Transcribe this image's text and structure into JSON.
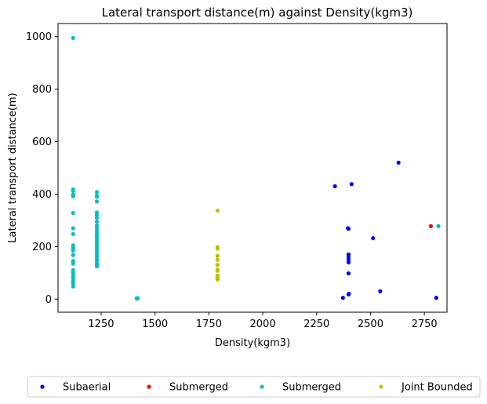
{
  "chart_data": {
    "type": "scatter",
    "title": "Lateral transport distance(m) against Density(kgm3)",
    "xlabel": "Density(kgm3)",
    "ylabel": "Lateral transport distance(m)",
    "xlim": [
      1050,
      2855
    ],
    "ylim": [
      -50,
      1050
    ],
    "xticks": [
      1250,
      1500,
      1750,
      2000,
      2250,
      2500,
      2750
    ],
    "yticks": [
      0,
      200,
      400,
      600,
      800,
      1000
    ],
    "legend_position": "bottom-center",
    "grid": false,
    "series": [
      {
        "name": "Subaerial",
        "color": "#0000ff",
        "points": [
          [
            2335,
            430
          ],
          [
            2372,
            5
          ],
          [
            2395,
            270
          ],
          [
            2398,
            268
          ],
          [
            2398,
            170
          ],
          [
            2398,
            160
          ],
          [
            2398,
            150
          ],
          [
            2398,
            140
          ],
          [
            2398,
            98
          ],
          [
            2398,
            18
          ],
          [
            2400,
            20
          ],
          [
            2412,
            438
          ],
          [
            2512,
            232
          ],
          [
            2545,
            30
          ],
          [
            2630,
            520
          ],
          [
            2805,
            5
          ]
        ]
      },
      {
        "name": "Submerged",
        "color": "#ff0000",
        "points": [
          [
            2780,
            278
          ]
        ]
      },
      {
        "name": "Submerged",
        "color": "#00bfbf",
        "points": [
          [
            1120,
            995
          ],
          [
            1120,
            418
          ],
          [
            1120,
            412
          ],
          [
            1120,
            398
          ],
          [
            1120,
            392
          ],
          [
            1120,
            328
          ],
          [
            1120,
            270
          ],
          [
            1120,
            248
          ],
          [
            1120,
            205
          ],
          [
            1120,
            195
          ],
          [
            1120,
            185
          ],
          [
            1120,
            168
          ],
          [
            1120,
            145
          ],
          [
            1120,
            135
          ],
          [
            1120,
            110
          ],
          [
            1120,
            100
          ],
          [
            1120,
            90
          ],
          [
            1120,
            80
          ],
          [
            1120,
            68
          ],
          [
            1120,
            60
          ],
          [
            1120,
            48
          ],
          [
            1230,
            408
          ],
          [
            1230,
            395
          ],
          [
            1230,
            390
          ],
          [
            1230,
            372
          ],
          [
            1230,
            330
          ],
          [
            1230,
            320
          ],
          [
            1230,
            310
          ],
          [
            1230,
            295
          ],
          [
            1230,
            280
          ],
          [
            1230,
            270
          ],
          [
            1230,
            258
          ],
          [
            1230,
            248
          ],
          [
            1230,
            240
          ],
          [
            1230,
            232
          ],
          [
            1230,
            222
          ],
          [
            1230,
            212
          ],
          [
            1230,
            200
          ],
          [
            1230,
            190
          ],
          [
            1230,
            180
          ],
          [
            1230,
            170
          ],
          [
            1230,
            162
          ],
          [
            1230,
            152
          ],
          [
            1230,
            145
          ],
          [
            1230,
            135
          ],
          [
            1230,
            130
          ],
          [
            1230,
            125
          ],
          [
            1415,
            3
          ],
          [
            1418,
            2
          ],
          [
            1420,
            3
          ],
          [
            2815,
            278
          ]
        ]
      },
      {
        "name": "Joint Bounded",
        "color": "#bfbf00",
        "points": [
          [
            1790,
            337
          ],
          [
            1790,
            198
          ],
          [
            1790,
            192
          ],
          [
            1790,
            165
          ],
          [
            1790,
            150
          ],
          [
            1790,
            130
          ],
          [
            1790,
            112
          ],
          [
            1790,
            108
          ],
          [
            1790,
            90
          ],
          [
            1790,
            85
          ],
          [
            1790,
            80
          ],
          [
            1790,
            75
          ]
        ]
      }
    ]
  }
}
